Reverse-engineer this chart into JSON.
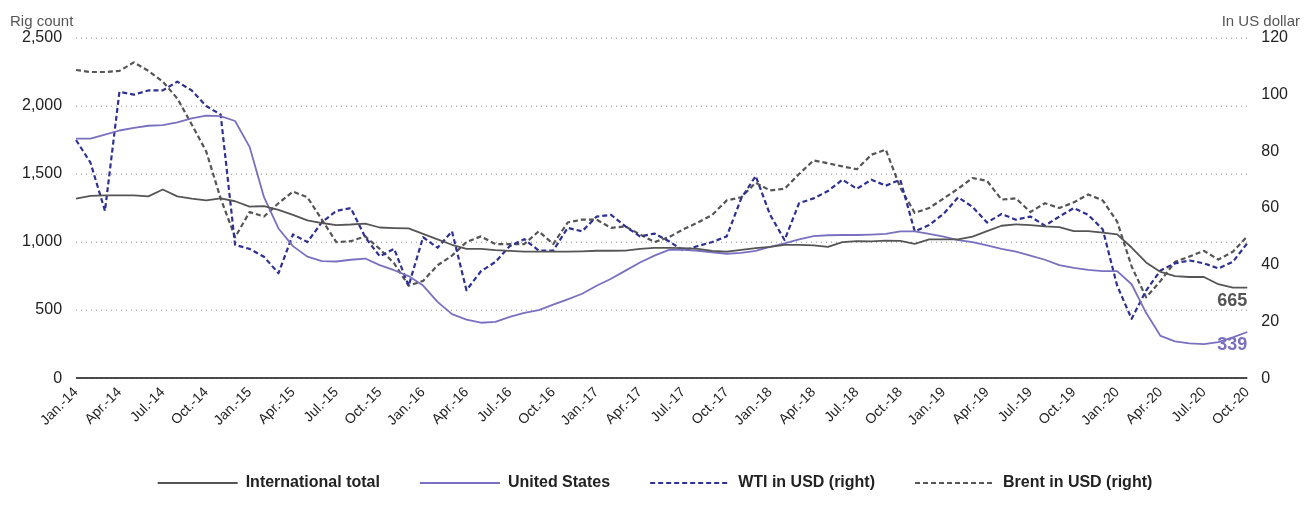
{
  "chart_data": {
    "type": "line",
    "ylabel": "Rig count",
    "y2label": "In US dollar",
    "categories": [
      "Jan.-14",
      null,
      null,
      "Apr.-14",
      null,
      null,
      "Jul.-14",
      null,
      null,
      "Oct.-14",
      null,
      null,
      "Jan.-15",
      null,
      null,
      "Apr.-15",
      null,
      null,
      "Jul.-15",
      null,
      null,
      "Oct.-15",
      null,
      null,
      "Jan.-16",
      null,
      null,
      "Apr.-16",
      null,
      null,
      "Jul.-16",
      null,
      null,
      "Oct.-16",
      null,
      null,
      "Jan.-17",
      null,
      null,
      "Apr.-17",
      null,
      null,
      "Jul.-17",
      null,
      null,
      "Oct.-17",
      null,
      null,
      "Jan.-18",
      null,
      null,
      "Apr.-18",
      null,
      null,
      "Jul.-18",
      null,
      null,
      "Oct.-18",
      null,
      null,
      "Jan.-19",
      null,
      null,
      "Apr.-19",
      null,
      null,
      "Jul.-19",
      null,
      null,
      "Oct.-19",
      null,
      null,
      "Jan.-20",
      null,
      null,
      "Apr.-20",
      null,
      null,
      "Jul.-20",
      null,
      null,
      "Oct.-20"
    ],
    "series": [
      {
        "name": "International total",
        "color": "#555555",
        "line_style": "solid",
        "values": [
          1320,
          1340,
          1343,
          1343,
          1343,
          1336,
          1386,
          1336,
          1320,
          1307,
          1321,
          1300,
          1260,
          1264,
          1236,
          1200,
          1160,
          1140,
          1125,
          1129,
          1136,
          1107,
          1103,
          1100,
          1060,
          1020,
          980,
          950,
          950,
          940,
          935,
          930,
          929,
          929,
          930,
          932,
          936,
          936,
          937,
          950,
          957,
          957,
          955,
          950,
          935,
          929,
          943,
          955,
          965,
          979,
          979,
          975,
          964,
          1000,
          1007,
          1005,
          1010,
          1008,
          986,
          1020,
          1020,
          1020,
          1040,
          1080,
          1120,
          1130,
          1125,
          1115,
          1110,
          1080,
          1080,
          1070,
          1057,
          960,
          850,
          780,
          750,
          743,
          743,
          690,
          665,
          665
        ],
        "value_labels": [
          null,
          null,
          null,
          null,
          null,
          null,
          null,
          null,
          null,
          null,
          null,
          null,
          null,
          null,
          null,
          null,
          null,
          null,
          null,
          null,
          null,
          null,
          null,
          null,
          null,
          null,
          null,
          null,
          null,
          null,
          null,
          null,
          null,
          null,
          null,
          null,
          null,
          null,
          null,
          null,
          null,
          null,
          null,
          null,
          null,
          null,
          null,
          null,
          null,
          null,
          null,
          null,
          null,
          null,
          null,
          null,
          null,
          null,
          null,
          null,
          null,
          null,
          null,
          null,
          null,
          null,
          null,
          null,
          null,
          null,
          null,
          null,
          null,
          null,
          null,
          null,
          null,
          null,
          null,
          null,
          null,
          "665"
        ]
      },
      {
        "name": "United States",
        "color": "#7a70c0",
        "line_style": "solid",
        "values": [
          1760,
          1760,
          1790,
          1820,
          1840,
          1855,
          1860,
          1880,
          1910,
          1930,
          1925,
          1890,
          1700,
          1330,
          1100,
          970,
          893,
          860,
          857,
          870,
          879,
          830,
          793,
          750,
          680,
          560,
          470,
          430,
          407,
          414,
          450,
          480,
          500,
          540,
          579,
          620,
          679,
          730,
          790,
          850,
          900,
          943,
          943,
          936,
          925,
          914,
          920,
          936,
          965,
          990,
          1020,
          1043,
          1050,
          1052,
          1052,
          1055,
          1060,
          1079,
          1079,
          1060,
          1040,
          1015,
          1000,
          975,
          950,
          930,
          900,
          870,
          830,
          810,
          795,
          786,
          786,
          690,
          480,
          310,
          270,
          255,
          250,
          265,
          300,
          339
        ],
        "value_labels": [
          null,
          null,
          null,
          null,
          null,
          null,
          null,
          null,
          null,
          null,
          null,
          null,
          null,
          null,
          null,
          null,
          null,
          null,
          null,
          null,
          null,
          null,
          null,
          null,
          null,
          null,
          null,
          null,
          null,
          null,
          null,
          null,
          null,
          null,
          null,
          null,
          null,
          null,
          null,
          null,
          null,
          null,
          null,
          null,
          null,
          null,
          null,
          null,
          null,
          null,
          null,
          null,
          null,
          null,
          null,
          null,
          null,
          null,
          null,
          null,
          null,
          null,
          null,
          null,
          null,
          null,
          null,
          null,
          null,
          null,
          null,
          null,
          null,
          null,
          null,
          null,
          null,
          null,
          null,
          null,
          null,
          "339"
        ]
      },
      {
        "name": "WTI in USD (right)",
        "color": "#2e3192",
        "line_style": "dashed",
        "axis": "y2",
        "values": [
          84,
          76,
          59,
          101,
          100,
          101.5,
          101.5,
          104.6,
          101.5,
          96,
          93,
          47,
          45.6,
          42.8,
          37,
          50.7,
          48,
          55,
          59,
          60,
          49.7,
          43,
          45.6,
          32.6,
          49.7,
          46,
          51.8,
          31,
          37.7,
          41,
          46.6,
          49,
          45,
          45,
          53,
          51.8,
          57,
          57.6,
          53.5,
          50,
          51,
          48.3,
          45,
          46.6,
          48,
          50,
          63.4,
          71.3,
          57.6,
          48.7,
          61.7,
          63.4,
          66,
          70,
          66.8,
          70,
          67.9,
          70,
          51.8,
          54,
          58,
          63.8,
          60.4,
          54.9,
          57.9,
          55.9,
          57,
          53.8,
          57,
          60,
          57.6,
          52.5,
          32.6,
          20.9,
          30.9,
          38,
          40.5,
          41.5,
          40.5,
          38.7,
          41,
          47.6
        ]
      },
      {
        "name": "Brent in USD (right)",
        "color": "#555555",
        "line_style": "dashed",
        "axis": "y2",
        "values": [
          108.7,
          108,
          108,
          108.4,
          111.4,
          108.4,
          104.6,
          98.7,
          89.5,
          80,
          63.4,
          49.7,
          58.6,
          57,
          61.7,
          65.8,
          63.8,
          55.9,
          48,
          48.3,
          50,
          45.6,
          40.5,
          32.6,
          34.3,
          39.8,
          43.2,
          48,
          50,
          47.3,
          47.3,
          47.3,
          51.8,
          47.3,
          54.9,
          55.9,
          55.9,
          53,
          53.5,
          50.7,
          48,
          49.7,
          52.5,
          54.9,
          57.6,
          62.7,
          63.8,
          68.9,
          66.2,
          66.8,
          72,
          76.8,
          75.8,
          74.7,
          73.7,
          78.8,
          80.6,
          67.2,
          58.3,
          60,
          63.4,
          66.8,
          70.6,
          69.6,
          63,
          63.4,
          58.6,
          61.7,
          60,
          62,
          64.8,
          62.7,
          55.2,
          39.4,
          28.5,
          34.3,
          41,
          42.9,
          44.9,
          41.8,
          44.6,
          50
        ]
      }
    ],
    "ylim": [
      0,
      2500
    ],
    "yticks": [
      0,
      {
        "value": 500,
        "label": "500"
      },
      {
        "value": 1000,
        "label": "1,000"
      },
      {
        "value": 1500,
        "label": "1,500"
      },
      {
        "value": 2000,
        "label": "2,000"
      },
      {
        "value": 2500,
        "label": "2,500"
      }
    ],
    "y2lim": [
      0,
      120
    ],
    "y2ticks": [
      0,
      20,
      40,
      60,
      80,
      100,
      120
    ],
    "grid": "y",
    "legend": "bottom",
    "marker": "none"
  }
}
